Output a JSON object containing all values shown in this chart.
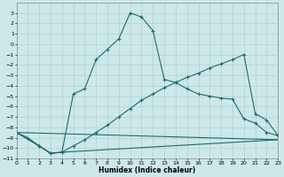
{
  "xlabel": "Humidex (Indice chaleur)",
  "bg_color": "#cce8e8",
  "line_color": "#1a6e6a",
  "xlim": [
    0,
    23
  ],
  "ylim": [
    -11,
    4
  ],
  "xticks": [
    0,
    1,
    2,
    3,
    4,
    5,
    6,
    7,
    8,
    9,
    10,
    11,
    12,
    13,
    14,
    15,
    16,
    17,
    18,
    19,
    20,
    21,
    22,
    23
  ],
  "yticks": [
    3,
    2,
    1,
    0,
    -1,
    -2,
    -3,
    -4,
    -5,
    -6,
    -7,
    -8,
    -9,
    -10,
    -11
  ],
  "series1_x": [
    0,
    1,
    2,
    3,
    4,
    5,
    6,
    7,
    8,
    9,
    10,
    11,
    12,
    13,
    14,
    15,
    16,
    17,
    18,
    19,
    20,
    21,
    22,
    23
  ],
  "series1_y": [
    -8.5,
    -9.0,
    -9.8,
    -10.5,
    -10.4,
    -4.8,
    -4.3,
    -1.5,
    -0.5,
    0.5,
    3.0,
    2.6,
    1.3,
    -3.4,
    -3.7,
    -4.3,
    -4.8,
    -5.0,
    -5.2,
    -5.3,
    -7.2,
    -7.6,
    -8.5,
    -8.8
  ],
  "series2_x": [
    0,
    2,
    3,
    4,
    5,
    6,
    7,
    8,
    9,
    10,
    11,
    12,
    13,
    14,
    15,
    16,
    17,
    18,
    19,
    20,
    21,
    22,
    23
  ],
  "series2_y": [
    -8.5,
    -9.8,
    -10.5,
    -10.4,
    -9.8,
    -9.2,
    -8.5,
    -7.8,
    -7.0,
    -6.2,
    -5.4,
    -4.8,
    -4.2,
    -3.7,
    -3.2,
    -2.8,
    -2.3,
    -1.9,
    -1.5,
    -1.0,
    -6.7,
    -7.3,
    -8.8
  ],
  "series3_x": [
    0,
    2,
    3,
    4,
    23
  ],
  "series3_y": [
    -8.5,
    -9.8,
    -10.5,
    -10.4,
    -9.2
  ],
  "series4_x": [
    0,
    23
  ],
  "series4_y": [
    -8.5,
    -9.2
  ]
}
